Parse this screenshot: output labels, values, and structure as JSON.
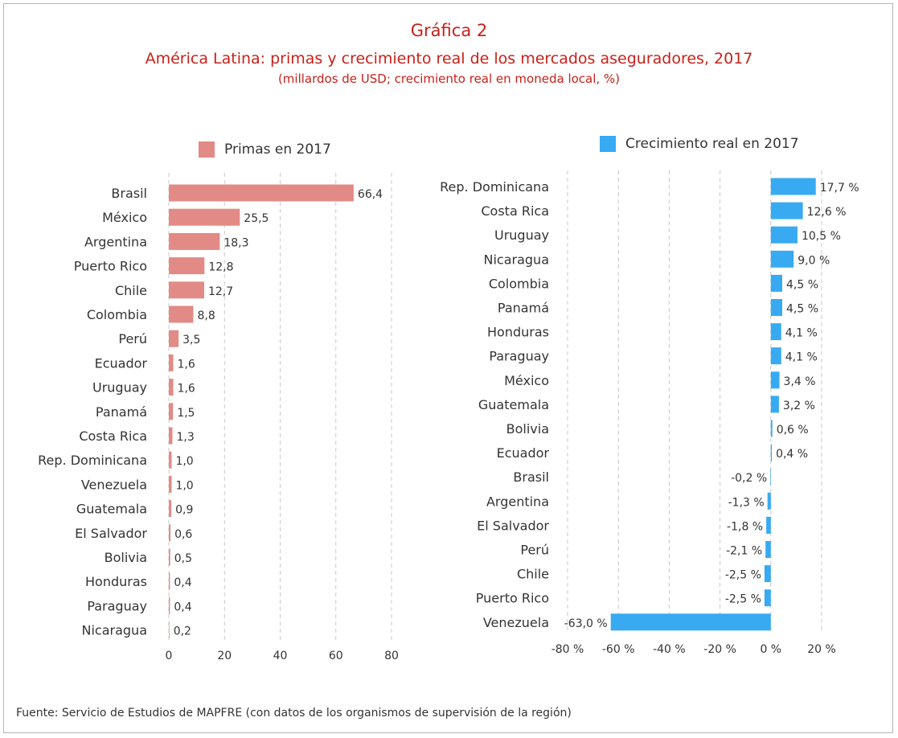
{
  "header": {
    "title": "Gráfica 2",
    "subtitle": "América Latina: primas y crecimiento real de los mercados aseguradores, 2017",
    "units": "(millardos de USD; crecimiento real en moneda local, %)"
  },
  "source": "Fuente: Servicio de Estudios de MAPFRE (con datos de los organismos de supervisión de la región)",
  "colors": {
    "primas": "#e28a85",
    "crecimiento": "#38aaf2",
    "title": "#c8211a"
  },
  "chart_data": [
    {
      "type": "bar",
      "orientation": "horizontal",
      "legend": "Primas en 2017",
      "legend_position": "top",
      "categories": [
        "Brasil",
        "México",
        "Argentina",
        "Puerto Rico",
        "Chile",
        "Colombia",
        "Perú",
        "Ecuador",
        "Uruguay",
        "Panamá",
        "Costa Rica",
        "Rep. Dominicana",
        "Venezuela",
        "Guatemala",
        "El Salvador",
        "Bolivia",
        "Honduras",
        "Paraguay",
        "Nicaragua"
      ],
      "values": [
        66.4,
        25.5,
        18.3,
        12.8,
        12.7,
        8.8,
        3.5,
        1.6,
        1.6,
        1.5,
        1.3,
        1.0,
        1.0,
        0.9,
        0.6,
        0.5,
        0.4,
        0.4,
        0.2
      ],
      "labels": [
        "66,4",
        "25,5",
        "18,3",
        "12,8",
        "12,7",
        "8,8",
        "3,5",
        "1,6",
        "1,6",
        "1,5",
        "1,3",
        "1,0",
        "1,0",
        "0,9",
        "0,6",
        "0,5",
        "0,4",
        "0,4",
        "0,2"
      ],
      "xlim": [
        0,
        80
      ],
      "xticks": [
        "0",
        "20",
        "40",
        "60",
        "80"
      ],
      "grid": true
    },
    {
      "type": "bar",
      "orientation": "horizontal",
      "legend": "Crecimiento real en 2017",
      "legend_position": "top",
      "categories": [
        "Rep. Dominicana",
        "Costa Rica",
        "Uruguay",
        "Nicaragua",
        "Colombia",
        "Panamá",
        "Honduras",
        "Paraguay",
        "México",
        "Guatemala",
        "Bolivia",
        "Ecuador",
        "Brasil",
        "Argentina",
        "El Salvador",
        "Perú",
        "Chile",
        "Puerto Rico",
        "Venezuela"
      ],
      "values": [
        17.7,
        12.6,
        10.5,
        9.0,
        4.5,
        4.5,
        4.1,
        4.1,
        3.4,
        3.2,
        0.6,
        0.4,
        -0.2,
        -1.3,
        -1.8,
        -2.1,
        -2.5,
        -2.5,
        -63.0
      ],
      "labels": [
        "17,7 %",
        "12,6 %",
        "10,5 %",
        "9,0 %",
        "4,5 %",
        "4,5 %",
        "4,1 %",
        "4,1 %",
        "3,4 %",
        "3,2 %",
        "0,6 %",
        "0,4 %",
        "-0,2 %",
        "-1,3 %",
        "-1,8 %",
        "-2,1 %",
        "-2,5 %",
        "-2,5 %",
        "-63,0 %"
      ],
      "xlim": [
        -80,
        20
      ],
      "xticks": [
        "-80 %",
        "-60 %",
        "-40 %",
        "-20 %",
        "0 %",
        "20 %"
      ],
      "grid": true
    }
  ]
}
